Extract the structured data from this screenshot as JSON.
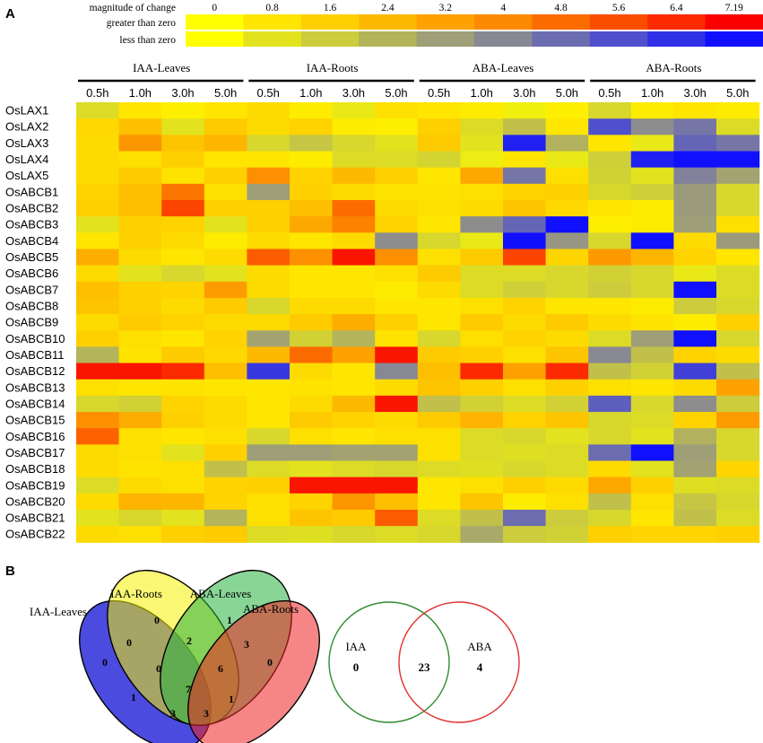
{
  "panel_labels": [
    "A",
    "B"
  ],
  "legend": {
    "title": "magnitude of change",
    "row_greater": "greater than zero",
    "row_less": "less than zero",
    "ticks": [
      "0",
      "0.8",
      "1.6",
      "2.4",
      "3.2",
      "4",
      "4.8",
      "5.6",
      "6.4",
      "7.19"
    ],
    "greater_colors": [
      "#ffff00",
      "#fee600",
      "#fed000",
      "#fdb900",
      "#fda200",
      "#fc8a00",
      "#fc6b00",
      "#fb4d00",
      "#fb2a00",
      "#fa0000"
    ],
    "less_colors": [
      "#ffff00",
      "#e2e21e",
      "#cccc3c",
      "#b4b45a",
      "#9e9e78",
      "#888894",
      "#6c6cb0",
      "#5050cc",
      "#3030e6",
      "#1010ff"
    ]
  },
  "chart_data": {
    "type": "heatmap",
    "title": "magnitude of change",
    "groups": [
      "IAA-Leaves",
      "IAA-Roots",
      "ABA-Leaves",
      "ABA-Roots"
    ],
    "timepoints": [
      "0.5h",
      "1.0h",
      "3.0h",
      "5.0h"
    ],
    "columns": [
      "IAA-Leaves 0.5h",
      "IAA-Leaves 1.0h",
      "IAA-Leaves 3.0h",
      "IAA-Leaves 5.0h",
      "IAA-Roots 0.5h",
      "IAA-Roots 1.0h",
      "IAA-Roots 3.0h",
      "IAA-Roots 5.0h",
      "ABA-Leaves 0.5h",
      "ABA-Leaves 1.0h",
      "ABA-Leaves 3.0h",
      "ABA-Leaves 5.0h",
      "ABA-Roots 0.5h",
      "ABA-Roots 1.0h",
      "ABA-Roots 3.0h",
      "ABA-Roots 5.0h"
    ],
    "rows": [
      "OsLAX1",
      "OsLAX2",
      "OsLAX3",
      "OsLAX4",
      "OsLAX5",
      "OsABCB1",
      "OsABCB2",
      "OsABCB3",
      "OsABCB4",
      "OsABCB5",
      "OsABCB6",
      "OsABCB7",
      "OsABCB8",
      "OsABCB9",
      "OsABCB10",
      "OsABCB11",
      "OsABCB12",
      "OsABCB13",
      "OsABCB14",
      "OsABCB15",
      "OsABCB16",
      "OsABCB17",
      "OsABCB18",
      "OsABCB19",
      "OsABCB20",
      "OsABCB21",
      "OsABCB22"
    ],
    "value_range": [
      -7.19,
      7.19
    ],
    "values": [
      [
        -1.0,
        0.8,
        0.5,
        0.8,
        1.2,
        0.6,
        -0.6,
        1.0,
        0.8,
        0.6,
        -0.4,
        0.5,
        -1.2,
        0.6,
        0.8,
        0.6
      ],
      [
        1.3,
        2.2,
        -0.8,
        1.8,
        1.2,
        1.5,
        0.6,
        0.5,
        1.6,
        -1.0,
        -2.0,
        0.8,
        -5.6,
        -3.8,
        -4.5,
        -1.0
      ],
      [
        1.2,
        3.6,
        2.0,
        2.5,
        -1.2,
        -1.8,
        -1.2,
        -0.8,
        1.8,
        -0.8,
        -6.8,
        -2.5,
        0.8,
        -0.6,
        -5.0,
        -4.5
      ],
      [
        1.2,
        1.0,
        1.6,
        0.8,
        0.8,
        0.6,
        -1.0,
        -1.0,
        -1.3,
        -0.5,
        0.8,
        -0.6,
        -1.5,
        -6.8,
        -7.19,
        -7.19
      ],
      [
        1.2,
        1.8,
        0.9,
        1.6,
        3.8,
        1.5,
        2.4,
        1.6,
        0.8,
        3.0,
        -4.5,
        1.0,
        -1.4,
        -0.8,
        -4.2,
        -3.0
      ],
      [
        1.5,
        2.2,
        4.5,
        1.0,
        -3.2,
        1.6,
        1.2,
        0.9,
        0.9,
        1.0,
        1.5,
        1.6,
        -1.2,
        -1.5,
        -3.3,
        -1.2
      ],
      [
        1.6,
        2.2,
        5.8,
        1.6,
        1.6,
        2.2,
        4.8,
        1.2,
        1.0,
        1.2,
        2.0,
        1.3,
        0.8,
        0.6,
        -3.3,
        -1.2
      ],
      [
        -0.8,
        1.6,
        1.5,
        -0.8,
        1.6,
        3.0,
        4.2,
        1.5,
        0.8,
        -3.8,
        -5.0,
        -7.19,
        0.5,
        0.6,
        -3.2,
        1.0
      ],
      [
        0.8,
        1.6,
        1.2,
        0.6,
        1.2,
        0.8,
        1.2,
        -3.8,
        -1.2,
        -0.6,
        -7.19,
        -3.5,
        -1.2,
        -7.19,
        1.2,
        -3.3
      ],
      [
        2.8,
        1.2,
        0.8,
        1.2,
        5.2,
        3.8,
        6.8,
        3.8,
        1.0,
        1.8,
        5.8,
        1.4,
        3.5,
        2.5,
        1.5,
        0.8
      ],
      [
        1.2,
        -0.8,
        -1.2,
        -0.8,
        1.2,
        0.8,
        0.8,
        1.0,
        1.8,
        -1.0,
        -1.0,
        -1.2,
        -1.4,
        -1.2,
        -0.6,
        -1.0
      ],
      [
        2.2,
        1.6,
        1.5,
        3.4,
        1.2,
        0.8,
        0.8,
        0.6,
        1.2,
        -1.0,
        -1.5,
        -1.2,
        -1.6,
        -1.2,
        -7.19,
        -1.0
      ],
      [
        2.0,
        1.6,
        1.2,
        1.8,
        -1.2,
        1.2,
        1.2,
        0.8,
        0.8,
        1.0,
        1.5,
        0.8,
        0.8,
        0.6,
        -1.6,
        -1.2
      ],
      [
        1.2,
        1.8,
        1.5,
        1.2,
        1.2,
        1.8,
        2.8,
        1.6,
        0.8,
        1.8,
        1.2,
        1.8,
        1.2,
        0.9,
        0.6,
        1.6
      ],
      [
        1.6,
        1.0,
        0.8,
        1.5,
        -3.0,
        -1.4,
        -2.4,
        0.9,
        -1.2,
        1.0,
        1.5,
        1.2,
        -1.0,
        -3.2,
        -7.19,
        -1.2
      ],
      [
        -2.4,
        0.9,
        1.8,
        1.3,
        2.4,
        4.8,
        3.2,
        6.8,
        1.8,
        1.6,
        1.0,
        2.0,
        -4.0,
        -2.0,
        1.5,
        1.2
      ],
      [
        6.8,
        6.8,
        6.4,
        2.2,
        -6.2,
        1.2,
        0.8,
        -4.0,
        2.2,
        6.4,
        3.2,
        6.4,
        -2.0,
        -1.4,
        -6.0,
        -2.0
      ],
      [
        1.0,
        0.8,
        0.9,
        0.8,
        0.8,
        0.9,
        0.8,
        1.2,
        2.0,
        1.6,
        1.0,
        1.6,
        1.0,
        0.8,
        1.2,
        3.2
      ],
      [
        -1.2,
        -1.4,
        1.5,
        1.2,
        0.8,
        1.2,
        2.4,
        6.8,
        -2.0,
        -1.4,
        -1.0,
        -1.4,
        -5.2,
        -1.2,
        -3.8,
        -1.6
      ],
      [
        3.8,
        2.8,
        1.6,
        1.2,
        0.8,
        1.8,
        1.5,
        1.2,
        1.8,
        2.6,
        1.5,
        2.0,
        -1.2,
        -1.0,
        1.5,
        3.4
      ],
      [
        5.0,
        1.0,
        0.8,
        1.0,
        -1.2,
        1.0,
        0.8,
        1.0,
        1.0,
        -1.0,
        -1.2,
        -0.8,
        -1.2,
        -0.8,
        -2.5,
        -1.2
      ],
      [
        1.2,
        1.0,
        -0.8,
        1.6,
        -3.2,
        -3.2,
        -3.0,
        -3.0,
        1.0,
        -1.0,
        -0.9,
        -1.0,
        -4.8,
        -7.19,
        -3.2,
        -1.2
      ],
      [
        1.2,
        0.9,
        1.0,
        -2.0,
        -1.0,
        -0.8,
        -1.0,
        -1.2,
        -1.0,
        -0.9,
        -1.2,
        -1.0,
        1.2,
        -0.8,
        -3.0,
        1.4
      ],
      [
        -1.0,
        1.2,
        1.0,
        1.5,
        1.6,
        6.8,
        6.8,
        6.8,
        0.8,
        1.0,
        1.6,
        1.2,
        3.0,
        1.6,
        -0.9,
        -1.0
      ],
      [
        1.2,
        2.6,
        2.5,
        1.5,
        1.0,
        1.5,
        3.6,
        2.2,
        0.8,
        2.0,
        0.6,
        1.0,
        -2.0,
        1.0,
        -1.8,
        -1.2
      ],
      [
        -0.8,
        -1.2,
        -0.8,
        -2.4,
        1.0,
        2.0,
        1.8,
        5.2,
        -1.0,
        -2.0,
        -4.8,
        -1.6,
        -1.2,
        0.8,
        -2.0,
        -1.0
      ],
      [
        1.2,
        1.0,
        1.6,
        1.8,
        -1.0,
        -0.9,
        -1.2,
        -1.0,
        -1.2,
        -2.8,
        -1.6,
        -1.4,
        1.6,
        1.4,
        1.4,
        1.6
      ]
    ]
  },
  "venn4": {
    "sets": [
      {
        "name": "IAA-Leaves",
        "color": "#2b2bd9"
      },
      {
        "name": "IAA-Roots",
        "color": "#f4f100"
      },
      {
        "name": "ABA-Leaves",
        "color": "#28b340"
      },
      {
        "name": "ABA-Roots",
        "color": "#ee2222"
      }
    ],
    "counts": {
      "IAA-Leaves only": "0",
      "IAA-Roots only": "0",
      "ABA-Leaves only": "1",
      "ABA-Roots only": "0",
      "IAA-Leaves & IAA-Roots": "0",
      "IAA-Roots & ABA-Leaves": "2",
      "ABA-Leaves & ABA-Roots": "3",
      "IAA-Leaves & ABA-Leaves": "0",
      "IAA-Roots & ABA-Leaves & ABA-Roots": "6",
      "IAA-Roots & ABA-Roots": "1",
      "IAA-Leaves & IAA-Roots & ABA-Leaves & ABA-Roots": "7",
      "IAA-Leaves & IAA-Roots & ABA-Roots": "3",
      "IAA-Leaves & ABA-Leaves & ABA-Roots": "3",
      "IAA-Leaves & ABA-Roots": "1"
    }
  },
  "venn2": {
    "sets": [
      {
        "name": "IAA",
        "color": "#2e8b2e",
        "only": "0"
      },
      {
        "name": "ABA",
        "color": "#e23030",
        "only": "4"
      }
    ],
    "both": "23"
  }
}
